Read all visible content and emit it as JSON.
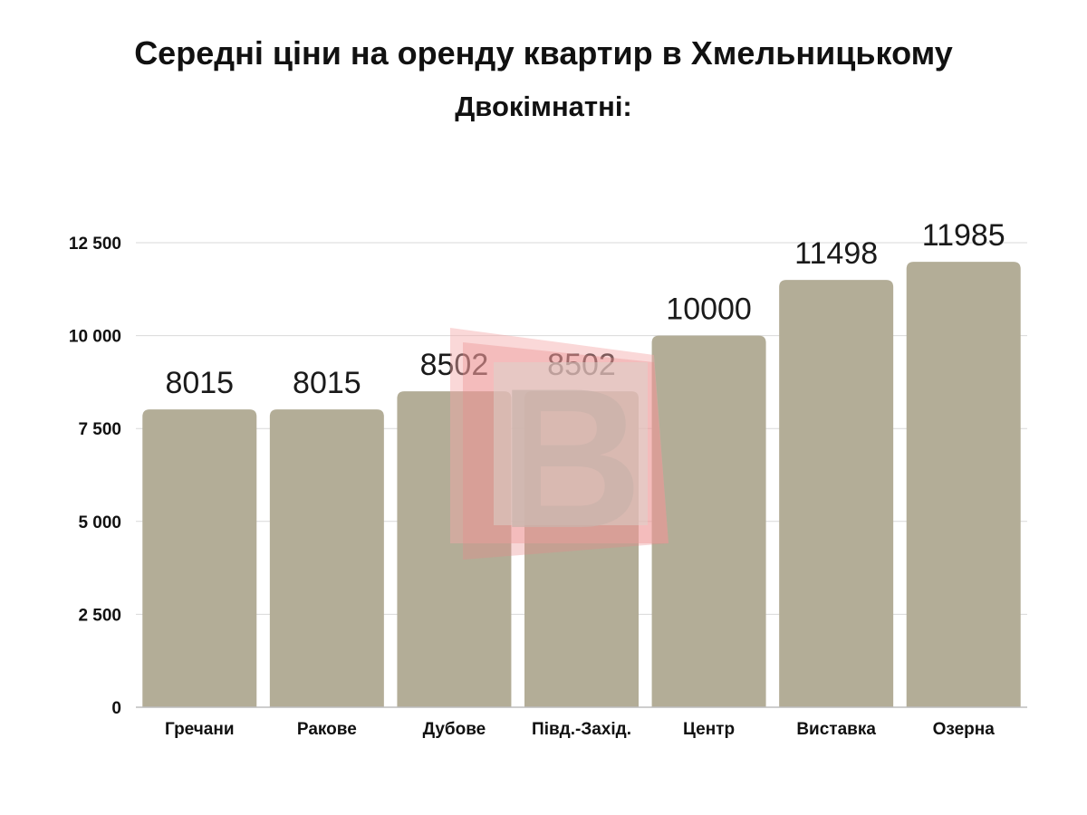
{
  "title": "Середні ціни на оренду квартир в Хмельницькому",
  "subtitle": "Двокімнатні:",
  "chart_data": {
    "type": "bar",
    "title": "Середні ціни на оренду квартир в Хмельницькому",
    "subtitle": "Двокімнатні:",
    "categories": [
      "Гречани",
      "Ракове",
      "Дубове",
      "Півд.-Захід.",
      "Центр",
      "Виставка",
      "Озерна"
    ],
    "values": [
      8015,
      8015,
      8502,
      8502,
      10000,
      11498,
      11985
    ],
    "data_labels": [
      "8015",
      "8015",
      "8502",
      "8502",
      "10000",
      "11498",
      "11985"
    ],
    "yticks": [
      0,
      2500,
      5000,
      7500,
      10000,
      12500
    ],
    "ytick_labels": [
      "0",
      "2 500",
      "5 000",
      "7 500",
      "10 000",
      "12 500"
    ],
    "ylim": [
      0,
      12500
    ],
    "xlabel": "",
    "ylabel": "",
    "grid": true,
    "bar_color": "#b3ad97",
    "grid_color": "#d9d9d9",
    "watermark": "В"
  }
}
